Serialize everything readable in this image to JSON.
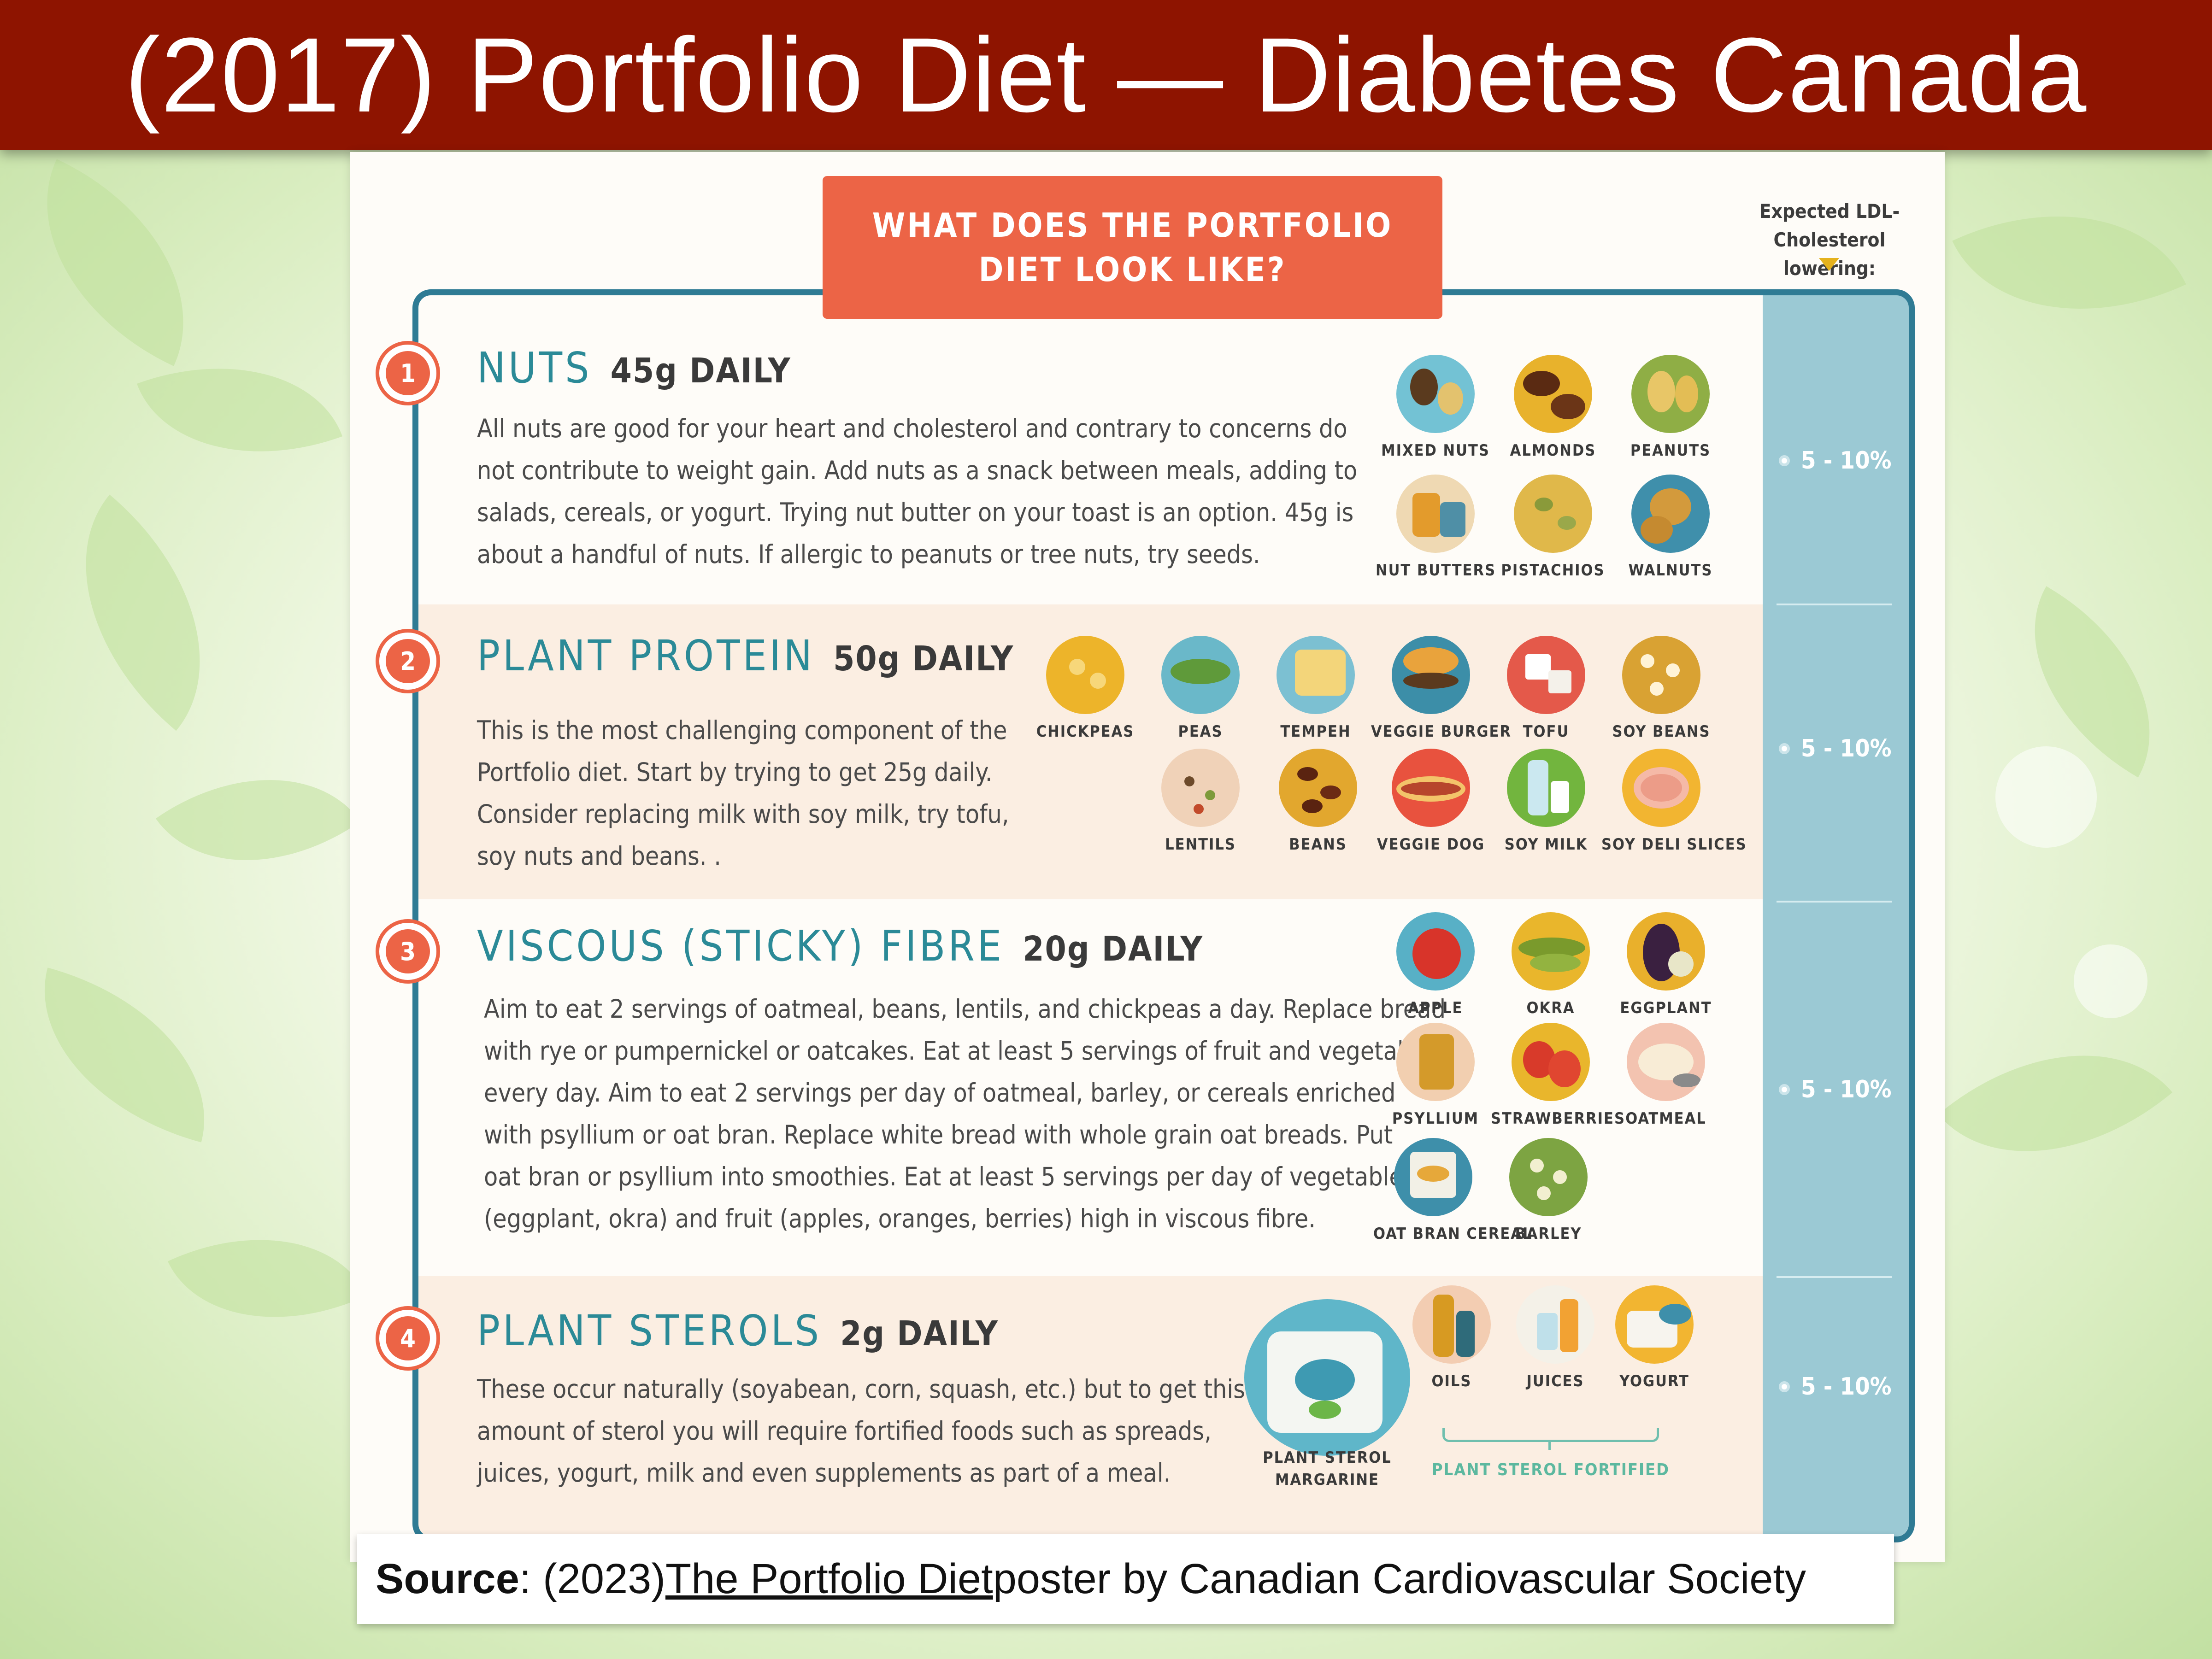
{
  "slide_title": "(2017) Portfolio Diet — Diabetes Canada",
  "poster": {
    "heading_line1": "WHAT DOES THE PORTFOLIO",
    "heading_line2": "DIET LOOK LIKE?",
    "ldl_header_line1": "Expected LDL-",
    "ldl_header_line2": "Cholesterol lowering:",
    "sections": [
      {
        "number": "1",
        "name": "NUTS",
        "amount": "45g DAILY",
        "body": [
          "All nuts are good for your heart and cholesterol and contrary to concerns do",
          "not contribute to weight gain. Add nuts as a snack between meals, adding to",
          "salads, cereals, or yogurt. Trying nut butter on your toast is an option. 45g is",
          "about a handful of nuts. If allergic to peanuts or tree nuts, try seeds."
        ],
        "ldl": "5 - 10%",
        "foods": [
          "MIXED NUTS",
          "ALMONDS",
          "PEANUTS",
          "NUT BUTTERS",
          "PISTACHIOS",
          "WALNUTS"
        ]
      },
      {
        "number": "2",
        "name": "PLANT PROTEIN",
        "amount": "50g DAILY",
        "body": [
          "This is the most challenging component of the",
          "Portfolio diet. Start by trying to get  25g daily.",
          "Consider replacing milk with soy milk, try tofu,",
          "soy nuts and beans. ."
        ],
        "ldl": "5 - 10%",
        "foods": [
          "CHICKPEAS",
          "PEAS",
          "TEMPEH",
          "VEGGIE BURGER",
          "TOFU",
          "SOY BEANS",
          "LENTILS",
          "BEANS",
          "VEGGIE DOG",
          "SOY MILK",
          "SOY DELI SLICES"
        ]
      },
      {
        "number": "3",
        "name": "VISCOUS (STICKY) FIBRE",
        "amount": "20g DAILY",
        "body": [
          "Aim to eat 2 servings of oatmeal, beans, lentils, and chickpeas a day. Replace bread",
          "with rye or pumpernickel or oatcakes. Eat at least 5 servings of fruit and vegetables",
          "every day. Aim to eat 2 servings per day of oatmeal, barley, or cereals enriched",
          "with psyllium or oat bran. Replace white bread with whole grain oat breads. Put",
          "oat bran or psyllium into smoothies. Eat at least 5 servings per day of vegetables",
          "(eggplant, okra) and fruit (apples, oranges, berries) high in viscous fibre."
        ],
        "ldl": "5 - 10%",
        "foods": [
          "APPLE",
          "OKRA",
          "EGGPLANT",
          "PSYLLIUM",
          "STRAWBERRIES",
          "OATMEAL",
          "OAT BRAN CEREAL",
          "BARLEY"
        ]
      },
      {
        "number": "4",
        "name": "PLANT STEROLS",
        "amount": "2g DAILY",
        "body": [
          "These occur naturally (soyabean, corn, squash, etc.) but to get this",
          "amount of sterol you will require fortified foods such as spreads,",
          "juices, yogurt, milk and even supplements as part of a meal."
        ],
        "ldl": "5 - 10%",
        "foods": [
          "OILS",
          "JUICES",
          "YOGURT"
        ],
        "margarine_line1": "PLANT STEROL",
        "margarine_line2": "MARGARINE",
        "fortified_label": "PLANT STEROL FORTIFIED"
      }
    ]
  },
  "source": {
    "label": "Source",
    "pre": ": (2023) ",
    "link": "The Portfolio Diet",
    "post": " poster by Canadian Cardiovascular Society"
  },
  "colors": {
    "banner": "#8e1400",
    "accent_orange": "#ec6446",
    "teal": "#2b8a97",
    "ldl_column": "#9bc9d4"
  }
}
